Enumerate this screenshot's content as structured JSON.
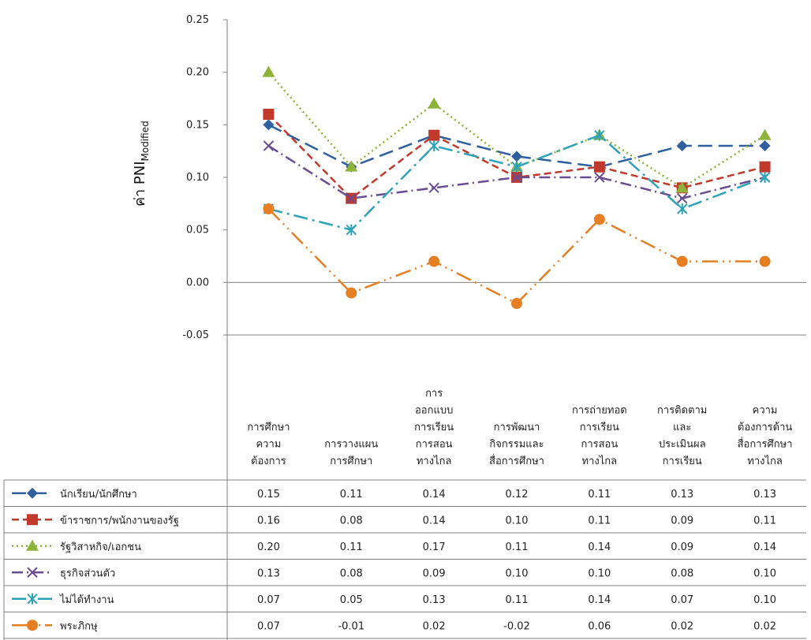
{
  "chart_data": {
    "type": "line",
    "ylabel": "ค่า PNI",
    "ylabel_subscript": "Modified",
    "ylim": [
      -0.05,
      0.25
    ],
    "yticks": [
      "0.25",
      "0.20",
      "0.15",
      "0.10",
      "0.05",
      "0.00",
      "-0.05"
    ],
    "ytick_values": [
      0.25,
      0.2,
      0.15,
      0.1,
      0.05,
      0.0,
      -0.05
    ],
    "categories": [
      [
        "การศึกษา",
        "ความ",
        "ต้องการ"
      ],
      [
        "การวางแผน",
        "การศึกษา"
      ],
      [
        "การ",
        "ออกแบบ",
        "การเรียน",
        "การสอน",
        "ทางไกล"
      ],
      [
        "การพัฒนา",
        "กิจกรรมและ",
        "สื่อการศึกษา"
      ],
      [
        "การถ่ายทอด",
        "การเรียน",
        "การสอน",
        "ทางไกล"
      ],
      [
        "การติดตาม",
        "และ",
        "ประเมินผล",
        "การเรียน"
      ],
      [
        "ความ",
        "ต้องการด้าน",
        "สื่อการศึกษา",
        "ทางไกล"
      ]
    ],
    "series": [
      {
        "name": "นักเรียน/นักศึกษา",
        "color": "#2e5f9e",
        "marker": "diamond",
        "dash": "long-dash",
        "values": [
          0.15,
          0.11,
          0.14,
          0.12,
          0.11,
          0.13,
          0.13
        ],
        "labels": [
          "0.15",
          "0.11",
          "0.14",
          "0.12",
          "0.11",
          "0.13",
          "0.13"
        ]
      },
      {
        "name": "ข้าราชการ/พนักงานของรัฐ",
        "color": "#c0392b",
        "marker": "square",
        "dash": "dash",
        "values": [
          0.16,
          0.08,
          0.14,
          0.1,
          0.11,
          0.09,
          0.11
        ],
        "labels": [
          "0.16",
          "0.08",
          "0.14",
          "0.10",
          "0.11",
          "0.09",
          "0.11"
        ]
      },
      {
        "name": "รัฐวิสาหกิจ/เอกชน",
        "color": "#8db33a",
        "marker": "triangle",
        "dash": "dot",
        "values": [
          0.2,
          0.11,
          0.17,
          0.11,
          0.14,
          0.09,
          0.14
        ],
        "labels": [
          "0.20",
          "0.11",
          "0.17",
          "0.11",
          "0.14",
          "0.09",
          "0.14"
        ]
      },
      {
        "name": "ธุรกิจส่วนตัว",
        "color": "#6a4c93",
        "marker": "x",
        "dash": "dash-dot",
        "values": [
          0.13,
          0.08,
          0.09,
          0.1,
          0.1,
          0.08,
          0.1
        ],
        "labels": [
          "0.13",
          "0.08",
          "0.09",
          "0.10",
          "0.10",
          "0.08",
          "0.10"
        ]
      },
      {
        "name": "ไม่ได้ทำงาน",
        "color": "#2ea3b8",
        "marker": "asterisk",
        "dash": "long-dash-dot",
        "values": [
          0.07,
          0.05,
          0.13,
          0.11,
          0.14,
          0.07,
          0.1
        ],
        "labels": [
          "0.07",
          "0.05",
          "0.13",
          "0.11",
          "0.14",
          "0.07",
          "0.10"
        ]
      },
      {
        "name": "พระภิกษุ",
        "color": "#e67e22",
        "marker": "circle",
        "dash": "long-dash-dot-dot",
        "values": [
          0.07,
          -0.01,
          0.02,
          -0.02,
          0.06,
          0.02,
          0.02
        ],
        "labels": [
          "0.07",
          "-0.01",
          "0.02",
          "-0.02",
          "0.06",
          "0.02",
          "0.02"
        ]
      }
    ]
  }
}
